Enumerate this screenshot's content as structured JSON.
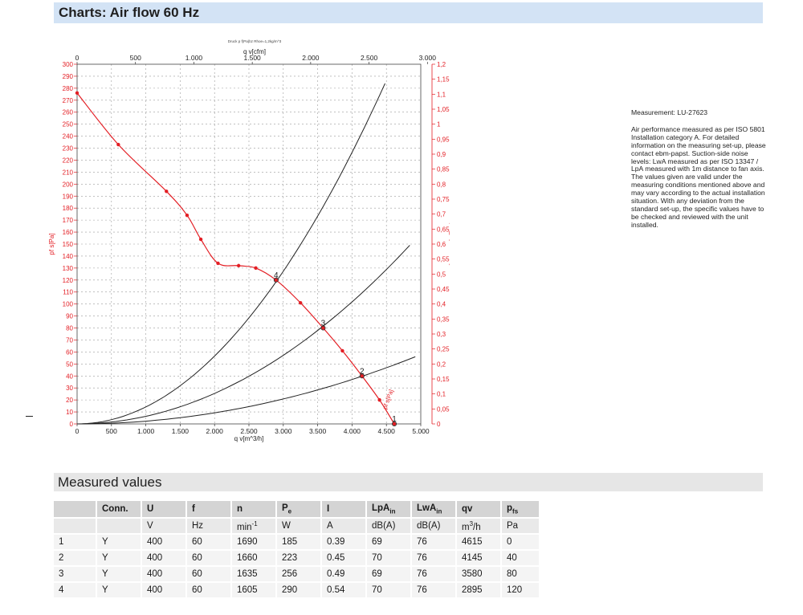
{
  "header": {
    "title": "Charts: Air flow 60 Hz"
  },
  "measured_section": {
    "title": "Measured values"
  },
  "side_note": {
    "measurement": "Measurement: LU-27623",
    "text": "Air performance measured as per ISO 5801 Installation category A. For detailed information on the measuring set-up, please contact ebm-papst. Suction-side noise levels: LwA measured as per ISO 13347 / LpA measured with 1m distance to fan axis. The values given are valid under the measuring conditions mentioned above and may vary according to the actual installation situation. With any deviation from the standard set-up, the specific values have to be checked and reviewed with the unit installed."
  },
  "chart_data": {
    "type": "line",
    "subtitle": "Druck p f(Pa)bz Rhoe=1,2kg/m^3",
    "xlabel": "q v[m^3/h]",
    "xlabel_top": "q v[cfm]",
    "ylabel_left": "pf s[Pa]",
    "ylabel_right": "pfs_E[IN.W2O]",
    "xlim": [
      0,
      5000
    ],
    "ylim": [
      0,
      300
    ],
    "xlim_top": [
      0,
      3000
    ],
    "ylim_right": [
      0,
      1.2
    ],
    "x_ticks": [
      "0",
      "500",
      "1.000",
      "1.500",
      "2.000",
      "2.500",
      "3.000",
      "3.500",
      "4.000",
      "4.500",
      "5.000"
    ],
    "x_ticks_top": [
      "0",
      "500",
      "1.000",
      "1.500",
      "2.000",
      "2.500",
      "3.000"
    ],
    "y_ticks": [
      "0",
      "10",
      "20",
      "30",
      "40",
      "50",
      "60",
      "70",
      "80",
      "90",
      "100",
      "110",
      "120",
      "130",
      "140",
      "150",
      "160",
      "170",
      "180",
      "190",
      "200",
      "210",
      "220",
      "230",
      "240",
      "250",
      "260",
      "270",
      "280",
      "290",
      "300"
    ],
    "y_ticks_right": [
      "0",
      "0,05",
      "0,1",
      "0,15",
      "0,2",
      "0,25",
      "0,3",
      "0,35",
      "0,4",
      "0,45",
      "0,5",
      "0,55",
      "0,6",
      "0,65",
      "0,7",
      "0,75",
      "0,8",
      "0,85",
      "0,9",
      "0,95",
      "1",
      "1,05",
      "1,1",
      "1,15",
      "1,2"
    ],
    "fan_curve": {
      "color": "#e31e24",
      "x": [
        0,
        600,
        1300,
        1600,
        1800,
        2050,
        2350,
        2600,
        2895,
        3250,
        3580,
        3860,
        4145,
        4400,
        4615
      ],
      "y": [
        276,
        233,
        194,
        174,
        154,
        134,
        132,
        130,
        120,
        101,
        80,
        61,
        40,
        20,
        0
      ],
      "label": "pf s[Pa]"
    },
    "system_curves": [
      {
        "color": "#222222",
        "x_end": 4480,
        "y_end": 284
      },
      {
        "color": "#222222",
        "x_end": 4840,
        "y_end": 149
      },
      {
        "color": "#222222",
        "x_end": 4920,
        "y_end": 56
      }
    ],
    "operating_points": [
      {
        "label": "1",
        "x": 4615,
        "y": 0
      },
      {
        "label": "2",
        "x": 4145,
        "y": 40
      },
      {
        "label": "3",
        "x": 3580,
        "y": 80
      },
      {
        "label": "4",
        "x": 2895,
        "y": 120
      }
    ]
  },
  "table": {
    "headers": [
      "",
      "Conn.",
      "U",
      "f",
      "n",
      "Pe",
      "I",
      "LpAin",
      "LwAin",
      "qv",
      "pfs"
    ],
    "units": [
      "",
      "",
      "V",
      "Hz",
      "min-1",
      "W",
      "A",
      "dB(A)",
      "dB(A)",
      "m3/h",
      "Pa"
    ],
    "rows": [
      [
        "1",
        "Y",
        "400",
        "60",
        "1690",
        "185",
        "0.39",
        "69",
        "76",
        "4615",
        "0"
      ],
      [
        "2",
        "Y",
        "400",
        "60",
        "1660",
        "223",
        "0.45",
        "70",
        "76",
        "4145",
        "40"
      ],
      [
        "3",
        "Y",
        "400",
        "60",
        "1635",
        "256",
        "0.49",
        "69",
        "76",
        "3580",
        "80"
      ],
      [
        "4",
        "Y",
        "400",
        "60",
        "1605",
        "290",
        "0.54",
        "70",
        "76",
        "2895",
        "120"
      ]
    ]
  }
}
